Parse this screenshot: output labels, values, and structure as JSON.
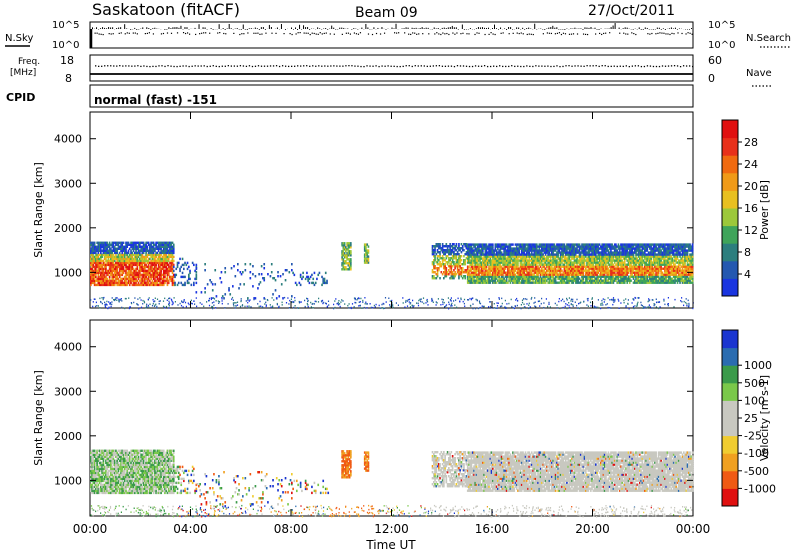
{
  "header": {
    "station": "Saskatoon (fitACF)",
    "beam": "Beam 09",
    "date": "27/Oct/2011"
  },
  "panels": {
    "nsky": {
      "label": "N.Sky",
      "tick_top": "10^5",
      "tick_bottom": "10^0"
    },
    "nsearch": {
      "label": "N.Search",
      "tick_top": "10^5",
      "tick_bottom": "10^0"
    },
    "freq": {
      "label_line1": "Freq.",
      "label_line2": "[MHz]",
      "tick_top": "18",
      "tick_bottom": "8"
    },
    "nave": {
      "label": "Nave",
      "tick_top": "60",
      "tick_bottom": "0"
    },
    "cpid": {
      "label": "CPID",
      "value": "normal (fast) -151"
    }
  },
  "chart_data": [
    {
      "type": "heatmap",
      "name": "power",
      "ylabel": "Slant Range [km]",
      "xlabel": "",
      "yticks": [
        "1000",
        "2000",
        "3000",
        "4000"
      ],
      "ytick_values": [
        1000,
        2000,
        3000,
        4000
      ],
      "ylim": [
        200,
        4600
      ],
      "xlim": [
        0,
        24
      ],
      "colorbar": {
        "label": "Power [dB]",
        "range": [
          0,
          32
        ],
        "colors": [
          "#1a35e0",
          "#2458b0",
          "#2c7e7e",
          "#3fa45a",
          "#9cc83a",
          "#e8c020",
          "#f09a18",
          "#f06a10",
          "#e8301a",
          "#e01010"
        ],
        "ticks": [
          "4",
          "8",
          "12",
          "16",
          "20",
          "24",
          "28"
        ],
        "tick_values": [
          4,
          8,
          12,
          16,
          20,
          24,
          28
        ]
      }
    },
    {
      "type": "heatmap",
      "name": "velocity",
      "ylabel": "Slant Range [km]",
      "xlabel": "Time UT",
      "yticks": [
        "1000",
        "2000",
        "3000",
        "4000"
      ],
      "ytick_values": [
        1000,
        2000,
        3000,
        4000
      ],
      "ylim": [
        200,
        4600
      ],
      "xlim": [
        0,
        24
      ],
      "xticks": [
        "00:00",
        "04:00",
        "08:00",
        "12:00",
        "16:00",
        "20:00",
        "00:00"
      ],
      "xtick_values": [
        0,
        4,
        8,
        12,
        16,
        20,
        24
      ],
      "colorbar": {
        "label": "Velocity [m s-1]",
        "colors": [
          "#e01010",
          "#f05a14",
          "#f0a020",
          "#f0cc30",
          "#c8c8c0",
          "#c8c8c0",
          "#7ac84a",
          "#3a9a4a",
          "#2a6cb0",
          "#1a35d0"
        ],
        "ticks": [
          "-1000",
          "-500",
          "-100",
          "-25",
          "25",
          "100",
          "500",
          "1000"
        ]
      }
    }
  ]
}
